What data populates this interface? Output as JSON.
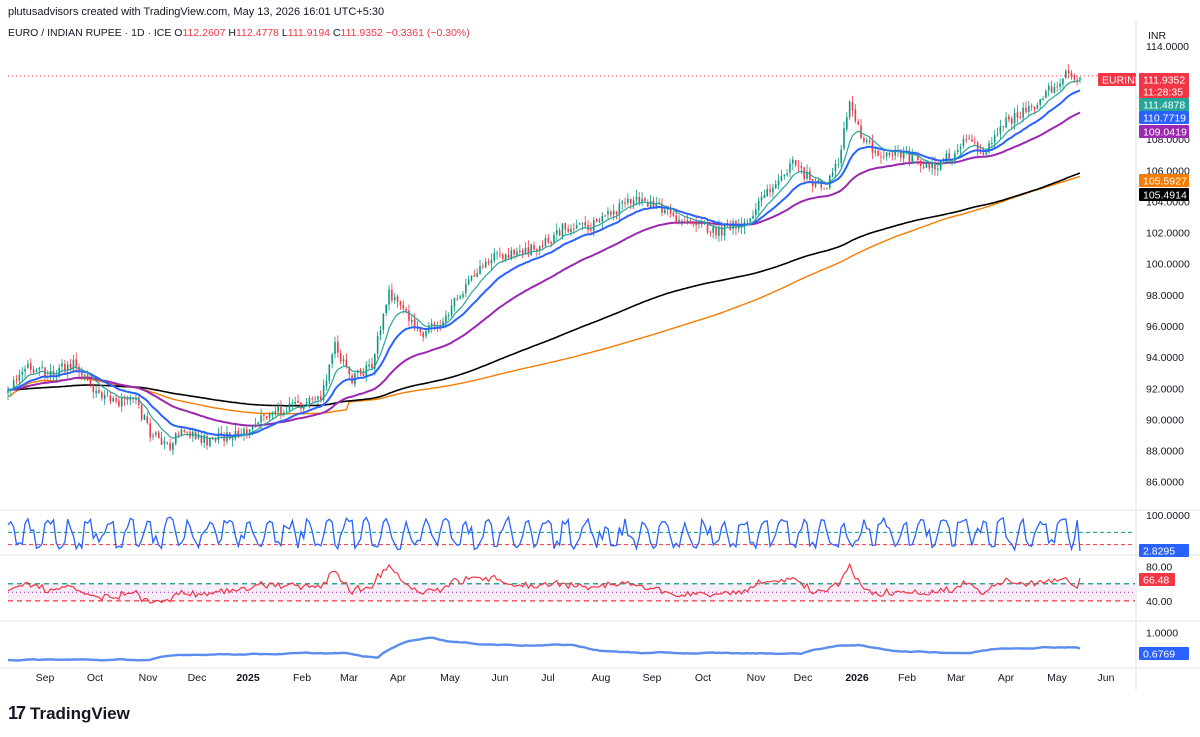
{
  "header": {
    "credit": "plutusadvisors created with TradingView.com, May 13, 2026 16:01 UTC+5:30"
  },
  "symbol": {
    "name": "EURO / INDIAN RUPEE · 1D · ICE",
    "o_label": "O",
    "o": "112.2607",
    "h_label": "H",
    "h": "112.4778",
    "l_label": "L",
    "l": "111.9194",
    "c_label": "C",
    "c": "111.9352",
    "change": "−0.3361 (−0.30%)"
  },
  "currency": "INR",
  "brand": "TradingView",
  "colors": {
    "up": "#089981",
    "down": "#f23645",
    "ema_fast": "#26a69a",
    "ema_blue": "#2962ff",
    "ema_purple": "#9c27b0",
    "sma_orange": "#f57c00",
    "sma_black": "#000000",
    "stoch": "#2962ff",
    "rsi": "#f23645",
    "atr": "#5b8def"
  },
  "chart_data": [
    {
      "type": "line",
      "title": "EURINR",
      "ylim": [
        84.5,
        114.5
      ],
      "y_ticks": [
        "86.0000",
        "88.0000",
        "90.0000",
        "92.0000",
        "94.0000",
        "96.0000",
        "98.0000",
        "100.0000",
        "102.0000",
        "104.0000",
        "106.0000",
        "108.0000",
        "110.0000",
        "114.0000"
      ],
      "x_ticks": [
        "Sep",
        "Oct",
        "Nov",
        "Dec",
        "2025",
        "Feb",
        "Mar",
        "Apr",
        "May",
        "Jun",
        "Jul",
        "Aug",
        "Sep",
        "Oct",
        "Nov",
        "Dec",
        "2026",
        "Feb",
        "Mar",
        "Apr",
        "May",
        "Jun"
      ],
      "x_tick_bold": [
        false,
        false,
        false,
        false,
        true,
        false,
        false,
        false,
        false,
        false,
        false,
        false,
        false,
        false,
        false,
        false,
        true,
        false,
        false,
        false,
        false,
        false
      ],
      "close_anchors": [
        [
          0,
          91.6
        ],
        [
          6,
          93.6
        ],
        [
          14,
          92.9
        ],
        [
          24,
          93.6
        ],
        [
          30,
          91.8
        ],
        [
          38,
          91.0
        ],
        [
          44,
          91.5
        ],
        [
          50,
          89.2
        ],
        [
          56,
          88.2
        ],
        [
          62,
          89.3
        ],
        [
          70,
          88.6
        ],
        [
          78,
          88.9
        ],
        [
          86,
          89.4
        ],
        [
          92,
          90.5
        ],
        [
          100,
          90.8
        ],
        [
          110,
          91.2
        ],
        [
          115,
          94.8
        ],
        [
          121,
          92.6
        ],
        [
          128,
          93.5
        ],
        [
          134,
          98.2
        ],
        [
          140,
          96.7
        ],
        [
          146,
          95.6
        ],
        [
          152,
          96.2
        ],
        [
          160,
          98.4
        ],
        [
          166,
          100.0
        ],
        [
          174,
          100.6
        ],
        [
          182,
          100.8
        ],
        [
          190,
          101.5
        ],
        [
          196,
          102.4
        ],
        [
          204,
          102.3
        ],
        [
          212,
          103.2
        ],
        [
          220,
          104.2
        ],
        [
          228,
          103.8
        ],
        [
          236,
          102.8
        ],
        [
          244,
          102.4
        ],
        [
          250,
          102.1
        ],
        [
          258,
          102.6
        ],
        [
          264,
          103.8
        ],
        [
          270,
          105.2
        ],
        [
          276,
          106.5
        ],
        [
          282,
          105.4
        ],
        [
          288,
          104.9
        ],
        [
          292,
          106.5
        ],
        [
          296,
          110.2
        ],
        [
          300,
          108.3
        ],
        [
          306,
          107.0
        ],
        [
          314,
          107.1
        ],
        [
          320,
          106.6
        ],
        [
          326,
          106.2
        ],
        [
          332,
          107.0
        ],
        [
          338,
          108.2
        ],
        [
          344,
          107.1
        ],
        [
          350,
          109.0
        ],
        [
          356,
          109.6
        ],
        [
          362,
          110.4
        ],
        [
          368,
          111.5
        ],
        [
          373,
          112.3
        ],
        [
          377,
          111.94
        ]
      ],
      "series": [
        {
          "name": "EURINR",
          "last": "111.9352",
          "countdown": "11:28:35"
        },
        {
          "last": "111.4878"
        },
        {
          "last": "110.7719"
        },
        {
          "last": "109.0419"
        },
        {
          "last": "105.5927"
        },
        {
          "last": "105.4914"
        }
      ]
    },
    {
      "type": "line",
      "title": "",
      "ylim": [
        0,
        100
      ],
      "y_ticks": [
        "100.0000"
      ],
      "levels": [
        80,
        20
      ],
      "series": [
        {
          "last": "2.8295"
        }
      ]
    },
    {
      "type": "line",
      "title": "",
      "ylim": [
        20,
        90
      ],
      "y_ticks": [
        "80.00",
        "40.00"
      ],
      "levels": [
        60,
        40
      ],
      "band": [
        40,
        60
      ],
      "series": [
        {
          "last": "66.48"
        }
      ]
    },
    {
      "type": "line",
      "title": "",
      "ylim": [
        0.35,
        1.15
      ],
      "y_ticks": [
        "1.0000"
      ],
      "series": [
        {
          "last": "0.6769"
        }
      ]
    }
  ]
}
